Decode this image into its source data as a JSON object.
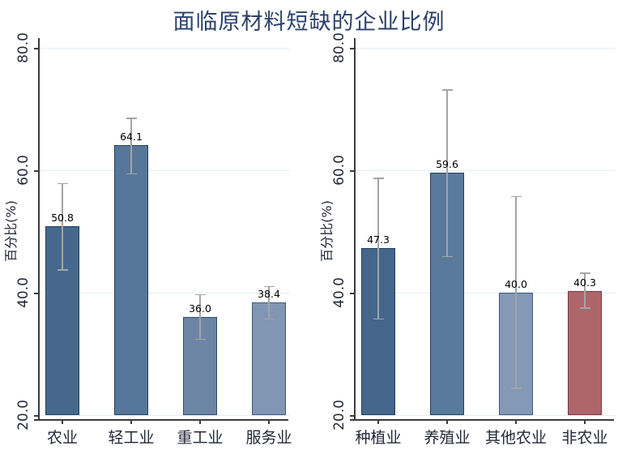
{
  "title": {
    "text": "面临原材料短缺的企业比例"
  },
  "styles": {
    "title_color": "#2c4269",
    "axis_color": "#3c3c3c",
    "grid_color": "#e4eef6",
    "error_bar_color": "#a4a4a4",
    "value_label_color": "#000000",
    "tick_label_color": "#242938"
  },
  "chart_data": [
    {
      "type": "bar",
      "panel": "industry",
      "ylabel": "百分比(%)",
      "ylim": [
        20,
        80
      ],
      "yticks": [
        "20.0",
        "40.0",
        "60.0",
        "80.0"
      ],
      "grid": true,
      "legend": "none",
      "categories": [
        "农业",
        "轻工业",
        "重工业",
        "服务业"
      ],
      "values": [
        50.8,
        64.1,
        36.0,
        38.4
      ],
      "error_low": [
        43.8,
        59.5,
        32.5,
        35.8
      ],
      "error_high": [
        57.9,
        68.6,
        39.8,
        41.1
      ],
      "bar_colors": [
        "#46688d",
        "#567799",
        "#6c85a4",
        "#8096b3"
      ],
      "bar_edge_colors": [
        "#234060",
        "#234060",
        "#2d4d70",
        "#3d5b80"
      ]
    },
    {
      "type": "bar",
      "panel": "agriculture",
      "ylabel": "百分比(%)",
      "ylim": [
        20,
        80
      ],
      "yticks": [
        "20.0",
        "40.0",
        "60.0",
        "80.0"
      ],
      "grid": true,
      "legend": "none",
      "categories": [
        "种植业",
        "养殖业",
        "其他农业",
        "非农业"
      ],
      "values": [
        47.3,
        59.6,
        40.0,
        40.3
      ],
      "error_low": [
        35.8,
        46.0,
        24.5,
        37.6
      ],
      "error_high": [
        58.8,
        73.2,
        55.8,
        43.3
      ],
      "bar_colors": [
        "#44668b",
        "#5a7a9b",
        "#8399b5",
        "#ae666b"
      ],
      "bar_edge_colors": [
        "#234060",
        "#234060",
        "#3d5b80",
        "#7a3a43"
      ]
    }
  ]
}
